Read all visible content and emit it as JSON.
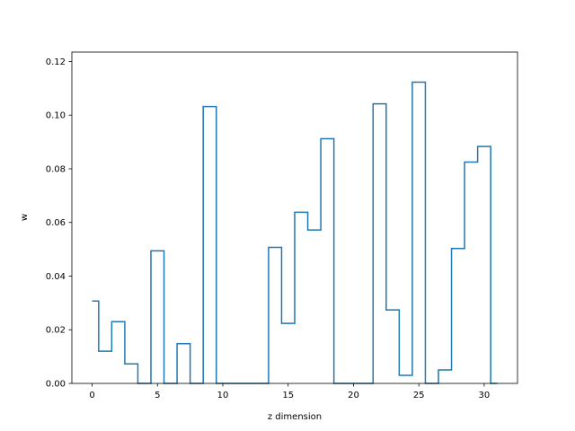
{
  "chart_data": {
    "type": "step",
    "title": "",
    "xlabel": "z dimension",
    "ylabel": "w",
    "xlim": [
      -1.55,
      32.55
    ],
    "ylim": [
      0,
      0.1235
    ],
    "xticks": [
      0,
      5,
      10,
      15,
      20,
      25,
      30
    ],
    "yticks": [
      0.0,
      0.02,
      0.04,
      0.06,
      0.08,
      0.1,
      0.12
    ],
    "ytick_labels": [
      "0.00",
      "0.02",
      "0.04",
      "0.06",
      "0.08",
      "0.10",
      "0.12"
    ],
    "grid": false,
    "line_color": "#1f77b4",
    "series": [
      {
        "x": [
          0,
          1,
          2,
          3,
          4,
          5,
          6,
          7,
          8,
          9,
          10,
          11,
          12,
          13,
          14,
          15,
          16,
          17,
          18,
          19,
          20,
          21,
          22,
          23,
          24,
          25,
          26,
          27,
          28,
          29,
          30,
          31
        ],
        "values": [
          0.0307,
          0.012,
          0.023,
          0.0073,
          0.0,
          0.0494,
          0.0,
          0.0148,
          0.0,
          0.1032,
          0.0,
          0.0,
          0.0,
          0.0,
          0.0507,
          0.0224,
          0.0638,
          0.0572,
          0.0912,
          0.0,
          0.0,
          0.0,
          0.1042,
          0.0274,
          0.003,
          0.1123,
          0.0,
          0.005,
          0.0503,
          0.0825,
          0.0883,
          0.0
        ]
      }
    ]
  }
}
